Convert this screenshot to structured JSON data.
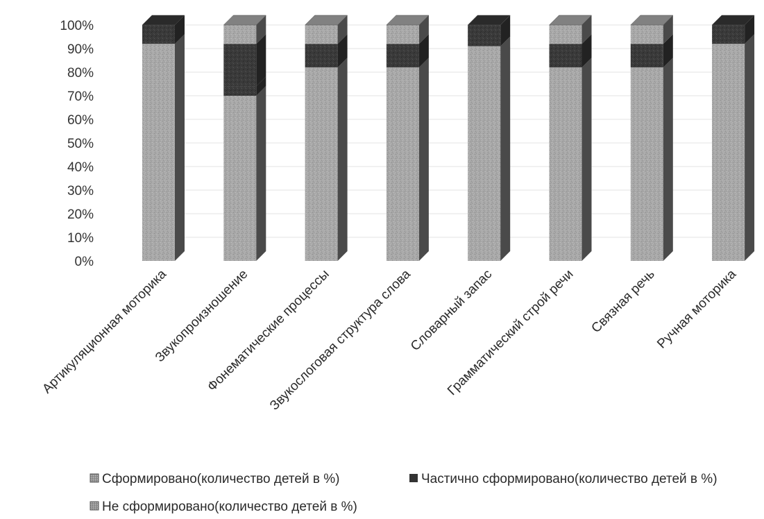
{
  "chart_data": {
    "type": "bar",
    "stacked": true,
    "percent_scale": true,
    "three_d": true,
    "title": "",
    "xlabel": "",
    "ylabel": "",
    "ylim": [
      0,
      100
    ],
    "y_ticks": [
      "0%",
      "10%",
      "20%",
      "30%",
      "40%",
      "50%",
      "60%",
      "70%",
      "80%",
      "90%",
      "100%"
    ],
    "grid": true,
    "legend_position": "bottom",
    "categories": [
      "Артикуляционная моторика",
      "Звукопроизношение",
      "Фонематические процессы",
      "Звукослоговая структура слова",
      "Словарный запас",
      "Грамматический строй речи",
      "Связная речь",
      "Ручная моторика"
    ],
    "series": [
      {
        "name": "Сформировано(количество детей в %)",
        "color": "#a6a6a6",
        "values": [
          92,
          70,
          82,
          82,
          91,
          82,
          82,
          92
        ]
      },
      {
        "name": "Не сформировано(количество детей в %)",
        "color": "#3c3c3c",
        "values": [
          0,
          4,
          0,
          0,
          0,
          0,
          0,
          0
        ]
      },
      {
        "name": "Частично сформировано(количество детей в %)",
        "color": "#3c3c3c",
        "values": [
          10,
          18,
          10,
          10,
          10,
          10,
          10,
          10
        ]
      },
      {
        "name": "",
        "color": "#a6a6a6",
        "values": [
          0,
          11,
          11,
          11,
          0,
          11,
          11,
          0
        ]
      }
    ]
  }
}
